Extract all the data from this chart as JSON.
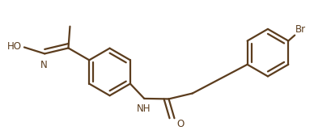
{
  "bg_color": "#ffffff",
  "line_color": "#5c3d1e",
  "text_color": "#5c3d1e",
  "bond_lw": 1.6,
  "figsize": [
    4.1,
    1.67
  ],
  "dpi": 100,
  "xlim": [
    0,
    4.1
  ],
  "ylim": [
    0,
    1.67
  ]
}
